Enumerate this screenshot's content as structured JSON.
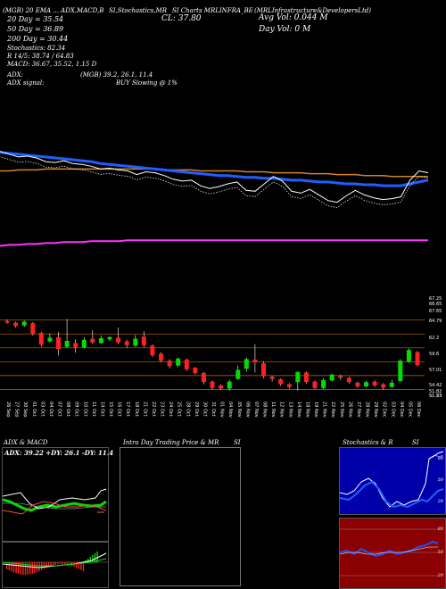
{
  "header": {
    "row1": [
      "(MGB) 20 EMA ... ADX,MACD,B",
      "SI,Stochastics,MR",
      "SI Charts MRLINFRA_BE",
      "(MRLInfrastructure&DevelopersLtd)"
    ],
    "indicators": [
      "20 Day = 35.54",
      "50 Day = 36.89",
      "200 Day = 30.44",
      "Stochastics: 82.34",
      "R 14/5: 38.74 / 64.83",
      "MACD: 36.67, 35.52, 1.15 D"
    ],
    "close": "CL: 37.80",
    "avg_vol": "Avg Vol: 0.044 M",
    "day_vol": "Day Vol: 0 M",
    "adx_line": "ADX:",
    "adx_values": "(MGB) 39.2, 26.1, 11.4",
    "adx_signal_label": "ADX signal:",
    "adx_signal": "BUY Slowing @ 1%"
  },
  "price_scale": [
    "67.65",
    "64.79",
    "62.2",
    "59.6",
    "57.01",
    "54.42",
    "51.82",
    "51.53",
    "51.23"
  ],
  "price_scale_top": [
    "67.25",
    "66.65"
  ],
  "dates": [
    "26 Sep",
    "27 Sep",
    "30 Sep",
    "01 Oct",
    "03 Oct",
    "04 Oct",
    "07 Oct",
    "08 Oct",
    "09 Oct",
    "10 Oct",
    "11 Oct",
    "14 Oct",
    "15 Oct",
    "16 Oct",
    "17 Oct",
    "18 Oct",
    "21 Oct",
    "22 Oct",
    "23 Oct",
    "24 Oct",
    "25 Oct",
    "28 Oct",
    "29 Oct",
    "30 Oct",
    "31 Oct",
    "01 Nov",
    "04 Nov",
    "05 Nov",
    "06 Nov",
    "07 Nov",
    "08 Nov",
    "11 Nov",
    "12 Nov",
    "13 Nov",
    "14 Nov",
    "18 Nov",
    "19 Nov",
    "21 Nov",
    "22 Nov",
    "25 Nov",
    "26 Nov",
    "27 Nov",
    "28 Nov",
    "29 Nov",
    "02 Dec",
    "03 Dec",
    "04 Dec",
    "05 Dec",
    "06 Dec"
  ],
  "panels": {
    "adx_title": "ADX & MACD",
    "adx_readout": "ADX: 39.22 +DY: 26.1 -DY: 11.4",
    "intraday_title": "Intra Day Trading Price & MR",
    "intraday_si": "SI",
    "stoch_title": "Stochastics & R",
    "stoch_si": "SI",
    "stoch_scale": [
      "80",
      "50",
      "20"
    ],
    "mrsi_scale": [
      "80",
      "50",
      "20"
    ]
  },
  "colors": {
    "ema20": "#ffffff",
    "ema50": "#1f5fff",
    "ema100": "#d2832a",
    "ema200": "#ff33ff",
    "bull": "#00dd00",
    "bear": "#ff2020",
    "grid": "#c07000"
  },
  "chart_data": {
    "type": "candlestick",
    "candles": [
      {
        "o": 64.6,
        "c": 64.3,
        "h": 64.9,
        "l": 64.1
      },
      {
        "o": 64.3,
        "c": 63.7,
        "h": 64.5,
        "l": 63.4
      },
      {
        "o": 63.8,
        "c": 64.5,
        "h": 64.7,
        "l": 63.5
      },
      {
        "o": 64.2,
        "c": 62.2,
        "h": 64.4,
        "l": 61.9
      },
      {
        "o": 62.4,
        "c": 60.2,
        "h": 62.6,
        "l": 59.8
      },
      {
        "o": 60.8,
        "c": 61.5,
        "h": 62.3,
        "l": 60.6
      },
      {
        "o": 61.6,
        "c": 59.4,
        "h": 62.6,
        "l": 58.2
      },
      {
        "o": 59.8,
        "c": 60.9,
        "h": 65.0,
        "l": 59.6
      },
      {
        "o": 60.5,
        "c": 59.7,
        "h": 61.2,
        "l": 58.7
      },
      {
        "o": 59.7,
        "c": 61.1,
        "h": 61.6,
        "l": 59.5
      },
      {
        "o": 61.3,
        "c": 60.6,
        "h": 62.9,
        "l": 60.3
      },
      {
        "o": 60.5,
        "c": 61.4,
        "h": 61.9,
        "l": 60.3
      },
      {
        "o": 61.2,
        "c": 61.6,
        "h": 61.8,
        "l": 60.9
      },
      {
        "o": 61.5,
        "c": 60.6,
        "h": 63.4,
        "l": 60.3
      },
      {
        "o": 60.8,
        "c": 60.1,
        "h": 61.1,
        "l": 59.6
      },
      {
        "o": 60.0,
        "c": 61.3,
        "h": 62.0,
        "l": 59.8
      },
      {
        "o": 61.7,
        "c": 60.1,
        "h": 62.7,
        "l": 59.7
      },
      {
        "o": 60.0,
        "c": 58.2,
        "h": 60.3,
        "l": 57.9
      },
      {
        "o": 58.5,
        "c": 57.2,
        "h": 58.8,
        "l": 56.9
      },
      {
        "o": 57.2,
        "c": 56.2,
        "h": 57.5,
        "l": 55.8
      },
      {
        "o": 56.3,
        "c": 57.6,
        "h": 57.8,
        "l": 56.0
      },
      {
        "o": 57.4,
        "c": 55.6,
        "h": 57.6,
        "l": 55.3
      },
      {
        "o": 55.9,
        "c": 54.9,
        "h": 56.0,
        "l": 54.6
      },
      {
        "o": 54.9,
        "c": 53.2,
        "h": 55.1,
        "l": 52.8
      },
      {
        "o": 53.3,
        "c": 52.1,
        "h": 53.5,
        "l": 51.8
      },
      {
        "o": 52.6,
        "c": 52.0,
        "h": 52.8,
        "l": 51.8
      },
      {
        "o": 52.0,
        "c": 53.3,
        "h": 53.6,
        "l": 51.6
      },
      {
        "o": 53.8,
        "c": 55.5,
        "h": 56.3,
        "l": 53.6
      },
      {
        "o": 55.7,
        "c": 57.5,
        "h": 57.8,
        "l": 55.2
      },
      {
        "o": 57.4,
        "c": 56.9,
        "h": 60.3,
        "l": 55.0
      },
      {
        "o": 56.7,
        "c": 54.3,
        "h": 57.1,
        "l": 53.9
      },
      {
        "o": 54.2,
        "c": 53.8,
        "h": 54.4,
        "l": 53.3
      },
      {
        "o": 53.7,
        "c": 52.8,
        "h": 53.9,
        "l": 52.5
      },
      {
        "o": 52.8,
        "c": 52.3,
        "h": 53.0,
        "l": 52.0
      },
      {
        "o": 53.2,
        "c": 55.1,
        "h": 55.2,
        "l": 51.6
      },
      {
        "o": 55.0,
        "c": 53.2,
        "h": 55.2,
        "l": 52.9
      },
      {
        "o": 53.3,
        "c": 52.1,
        "h": 53.5,
        "l": 51.9
      },
      {
        "o": 52.1,
        "c": 53.6,
        "h": 53.9,
        "l": 51.9
      },
      {
        "o": 53.5,
        "c": 54.6,
        "h": 54.8,
        "l": 53.3
      },
      {
        "o": 54.3,
        "c": 54.0,
        "h": 54.6,
        "l": 53.6
      },
      {
        "o": 54.0,
        "c": 53.2,
        "h": 54.2,
        "l": 52.9
      },
      {
        "o": 53.1,
        "c": 52.4,
        "h": 53.3,
        "l": 52.1
      },
      {
        "o": 52.4,
        "c": 53.2,
        "h": 53.4,
        "l": 52.2
      },
      {
        "o": 53.3,
        "c": 52.6,
        "h": 53.5,
        "l": 52.3
      },
      {
        "o": 52.8,
        "c": 52.2,
        "h": 53.0,
        "l": 51.8
      },
      {
        "o": 52.3,
        "c": 53.1,
        "h": 53.6,
        "l": 52.1
      },
      {
        "o": 53.4,
        "c": 57.2,
        "h": 57.5,
        "l": 53.3
      },
      {
        "o": 57.0,
        "c": 59.2,
        "h": 59.5,
        "l": 56.8
      },
      {
        "o": 58.8,
        "c": 56.4,
        "h": 59.0,
        "l": 56.1
      }
    ],
    "yrange": [
      50.9,
      67.9
    ],
    "hlines": [
      64.79,
      62.2,
      59.6,
      57.01,
      54.42,
      51.82
    ],
    "ema": {
      "ema20": [
        40.2,
        40.1,
        39.8,
        39.5,
        39.6,
        39.4,
        39.0,
        38.9,
        39.1,
        38.8,
        38.7,
        38.5,
        38.2,
        38.3,
        38.1,
        38.0,
        37.6,
        37.9,
        37.8,
        37.5,
        37.1,
        36.9,
        37.0,
        36.4,
        36.1,
        36.3,
        36.6,
        36.8,
        35.9,
        35.8,
        36.6,
        37.4,
        36.9,
        35.8,
        35.6,
        36.0,
        35.4,
        34.8,
        34.6,
        35.3,
        35.9,
        35.4,
        35.1,
        34.9,
        35.0,
        35.2,
        37.0,
        38.0,
        37.8
      ],
      "ema50": [
        40.0,
        40.0,
        39.9,
        39.8,
        39.7,
        39.6,
        39.5,
        39.4,
        39.3,
        39.2,
        39.1,
        39.0,
        38.8,
        38.7,
        38.6,
        38.5,
        38.4,
        38.3,
        38.2,
        38.1,
        38.0,
        37.9,
        37.8,
        37.7,
        37.6,
        37.5,
        37.5,
        37.4,
        37.3,
        37.3,
        37.2,
        37.2,
        37.1,
        37.0,
        37.0,
        36.9,
        36.8,
        36.8,
        36.7,
        36.6,
        36.6,
        36.5,
        36.5,
        36.4,
        36.4,
        36.4,
        36.6,
        36.8,
        37.0
      ],
      "ema100": [
        38.0,
        38.0,
        38.0,
        38.1,
        38.1,
        38.1,
        38.2,
        38.2,
        38.2,
        38.2,
        38.2,
        38.2,
        38.2,
        38.2,
        38.2,
        38.2,
        38.2,
        38.2,
        38.2,
        38.1,
        38.1,
        38.1,
        38.1,
        38.0,
        38.0,
        38.0,
        38.0,
        38.0,
        37.9,
        37.9,
        37.9,
        37.8,
        37.8,
        37.8,
        37.8,
        37.7,
        37.7,
        37.7,
        37.6,
        37.6,
        37.6,
        37.5,
        37.5,
        37.5,
        37.4,
        37.4,
        37.4,
        37.4,
        37.4
      ],
      "ema200": [
        29.8,
        29.9,
        30.0,
        30.0,
        30.1,
        30.1,
        30.2,
        30.2,
        30.3,
        30.3,
        30.3,
        30.4,
        30.4,
        30.4,
        30.4,
        30.5,
        30.5,
        30.5,
        30.5,
        30.5,
        30.5,
        30.5,
        30.5,
        30.5,
        30.5,
        30.5,
        30.5,
        30.5,
        30.5,
        30.5,
        30.5,
        30.5,
        30.5,
        30.5,
        30.5,
        30.5,
        30.5,
        30.5,
        30.5,
        30.5,
        30.5,
        30.5,
        30.5,
        30.5,
        30.5,
        30.5,
        30.5,
        30.5,
        30.5
      ],
      "yrange": [
        28.5,
        42.0
      ]
    }
  }
}
